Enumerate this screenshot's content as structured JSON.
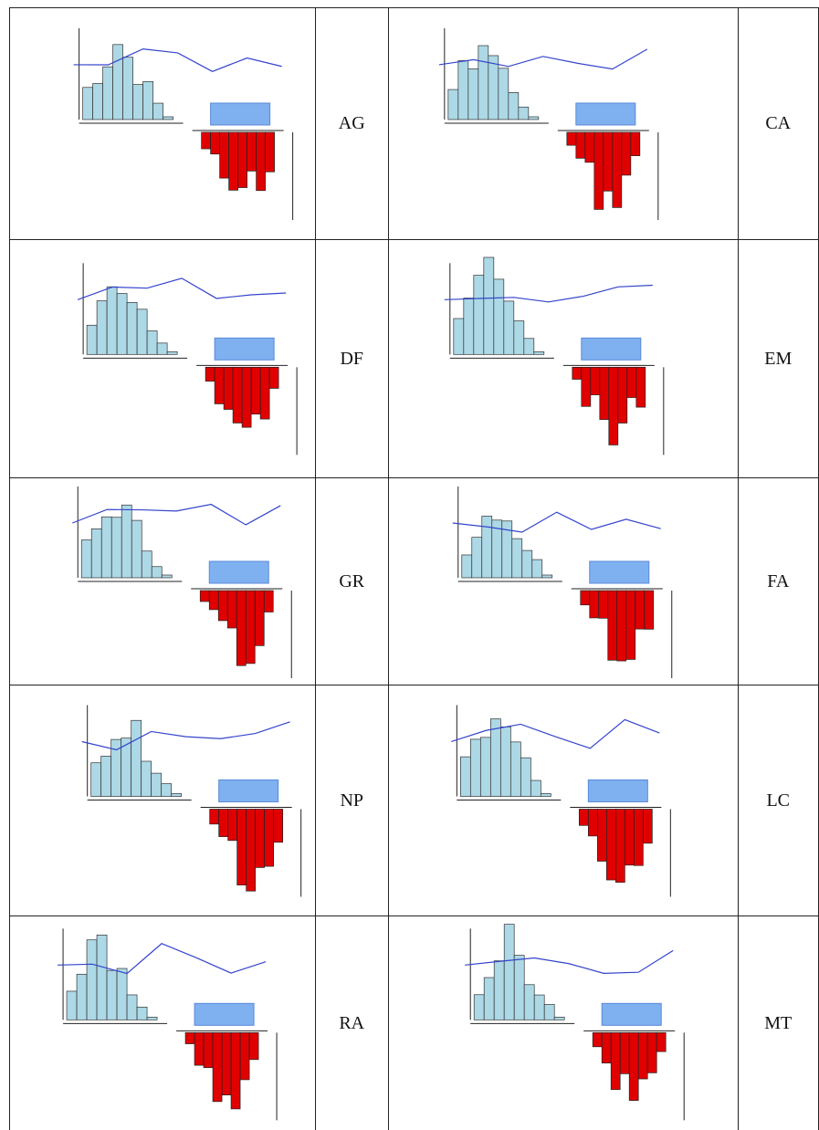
{
  "table": {
    "rows": [
      [
        "AG",
        "CA"
      ],
      [
        "DF",
        "EM"
      ],
      [
        "GR",
        "FA"
      ],
      [
        "NP",
        "LC"
      ],
      [
        "RA",
        "MT"
      ]
    ]
  }
}
